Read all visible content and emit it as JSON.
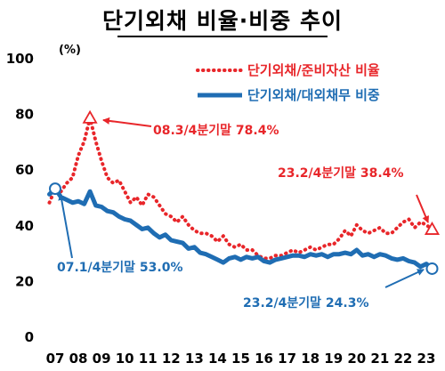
{
  "chart_data": {
    "type": "line",
    "title": "단기외채 비율·비중 추이",
    "ylabel": "(%)",
    "ylim": [
      0,
      100
    ],
    "yticks": [
      0,
      20,
      40,
      60,
      80,
      100
    ],
    "xlim": [
      2007.0,
      2023.5
    ],
    "xtick_labels": [
      "07",
      "08",
      "09",
      "10",
      "11",
      "12",
      "13",
      "14",
      "15",
      "16",
      "17",
      "18",
      "19",
      "20",
      "21",
      "22",
      "23"
    ],
    "grid": false,
    "legend_position": "top-right",
    "series": [
      {
        "name": "단기외채/준비자산 비율",
        "color": "#e8262a",
        "style": "dotted",
        "x": [
          2006.75,
          2007.0,
          2007.25,
          2007.5,
          2007.75,
          2008.0,
          2008.25,
          2008.5,
          2008.75,
          2009.0,
          2009.25,
          2009.5,
          2009.75,
          2010.0,
          2010.25,
          2010.5,
          2010.75,
          2011.0,
          2011.25,
          2011.5,
          2011.75,
          2012.0,
          2012.25,
          2012.5,
          2012.75,
          2013.0,
          2013.25,
          2013.5,
          2013.75,
          2014.0,
          2014.25,
          2014.5,
          2014.75,
          2015.0,
          2015.25,
          2015.5,
          2015.75,
          2016.0,
          2016.25,
          2016.5,
          2016.75,
          2017.0,
          2017.25,
          2017.5,
          2017.75,
          2018.0,
          2018.25,
          2018.5,
          2018.75,
          2019.0,
          2019.25,
          2019.5,
          2019.75,
          2020.0,
          2020.25,
          2020.5,
          2020.75,
          2021.0,
          2021.25,
          2021.5,
          2021.75,
          2022.0,
          2022.25,
          2022.5,
          2022.75,
          2023.0,
          2023.25
        ],
        "values": [
          48.0,
          53.0,
          52.0,
          55.0,
          57.0,
          65.0,
          70.0,
          78.4,
          70.0,
          63.0,
          57.0,
          55.0,
          56.0,
          52.0,
          48.0,
          50.0,
          47.0,
          51.0,
          50.0,
          47.0,
          44.0,
          43.0,
          41.0,
          43.0,
          40.0,
          38.0,
          37.0,
          37.0,
          36.0,
          34.0,
          36.0,
          33.0,
          32.0,
          33.0,
          31.0,
          31.0,
          29.0,
          28.0,
          28.0,
          29.0,
          29.0,
          30.0,
          31.0,
          30.0,
          31.0,
          32.0,
          31.0,
          32.0,
          33.0,
          33.0,
          35.0,
          38.0,
          36.0,
          40.0,
          38.0,
          37.0,
          38.0,
          39.0,
          37.0,
          37.0,
          39.0,
          41.0,
          42.0,
          39.0,
          41.0,
          40.0,
          38.4
        ]
      },
      {
        "name": "단기외채/대외채무 비중",
        "color": "#1f6db3",
        "style": "solid",
        "x": [
          2006.75,
          2007.0,
          2007.25,
          2007.5,
          2007.75,
          2008.0,
          2008.25,
          2008.5,
          2008.75,
          2009.0,
          2009.25,
          2009.5,
          2009.75,
          2010.0,
          2010.25,
          2010.5,
          2010.75,
          2011.0,
          2011.25,
          2011.5,
          2011.75,
          2012.0,
          2012.25,
          2012.5,
          2012.75,
          2013.0,
          2013.25,
          2013.5,
          2013.75,
          2014.0,
          2014.25,
          2014.5,
          2014.75,
          2015.0,
          2015.25,
          2015.5,
          2015.75,
          2016.0,
          2016.25,
          2016.5,
          2016.75,
          2017.0,
          2017.25,
          2017.5,
          2017.75,
          2018.0,
          2018.25,
          2018.5,
          2018.75,
          2019.0,
          2019.25,
          2019.5,
          2019.75,
          2020.0,
          2020.25,
          2020.5,
          2020.75,
          2021.0,
          2021.25,
          2021.5,
          2021.75,
          2022.0,
          2022.25,
          2022.5,
          2022.75,
          2023.0,
          2023.25
        ],
        "values": [
          51.0,
          53.0,
          50.0,
          49.0,
          48.0,
          48.5,
          47.5,
          52.0,
          47.0,
          46.5,
          45.0,
          44.5,
          43.0,
          42.0,
          41.5,
          40.0,
          38.5,
          39.0,
          37.0,
          35.5,
          36.5,
          34.5,
          34.0,
          33.5,
          31.5,
          32.0,
          30.0,
          29.5,
          28.5,
          27.5,
          26.5,
          28.0,
          28.5,
          27.5,
          28.5,
          28.0,
          28.5,
          27.0,
          26.5,
          27.5,
          28.0,
          28.5,
          29.0,
          29.0,
          28.5,
          29.5,
          29.0,
          29.5,
          28.5,
          29.5,
          29.5,
          30.0,
          29.5,
          31.0,
          29.0,
          29.5,
          28.5,
          29.5,
          29.0,
          28.0,
          27.5,
          28.0,
          27.0,
          26.5,
          25.0,
          26.0,
          24.3
        ]
      }
    ],
    "annotations": [
      {
        "text": "08.3/4분기말 78.4%",
        "series": 0,
        "x": 2008.5,
        "y": 78.4,
        "marker": "triangle"
      },
      {
        "text": "23.2/4분기말 38.4%",
        "series": 0,
        "x": 2023.25,
        "y": 38.4,
        "marker": "triangle"
      },
      {
        "text": "07.1/4분기말 53.0%",
        "series": 1,
        "x": 2007.0,
        "y": 53.0,
        "marker": "circle"
      },
      {
        "text": "23.2/4분기말 24.3%",
        "series": 1,
        "x": 2023.25,
        "y": 24.3,
        "marker": "circle"
      }
    ]
  }
}
